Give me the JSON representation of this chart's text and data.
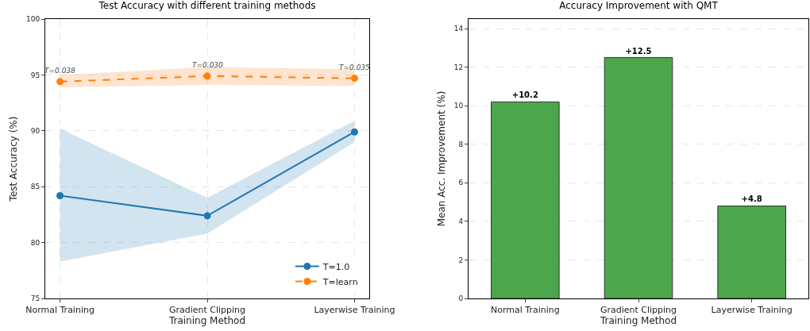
{
  "chart_data": [
    {
      "type": "line",
      "title": "Test Accuracy with different training methods",
      "xlabel": "Training Method",
      "ylabel": "Test Accuracy (%)",
      "categories": [
        "Normal Training",
        "Gradient Clipping",
        "Layerwise Training"
      ],
      "series": [
        {
          "name": "T=1.0",
          "color": "#1f77b4",
          "values": [
            84.2,
            82.4,
            89.9
          ],
          "lower": [
            78.3,
            80.8,
            89.0
          ],
          "upper": [
            90.2,
            84.0,
            90.9
          ],
          "line_style": "solid"
        },
        {
          "name": "T=learn",
          "color": "#ff7f0e",
          "values": [
            94.4,
            94.9,
            94.7
          ],
          "lower": [
            93.9,
            94.1,
            94.0
          ],
          "upper": [
            95.0,
            95.7,
            95.5
          ],
          "line_style": "dashed"
        }
      ],
      "annotations": [
        {
          "text": "T=0.038",
          "x": "Normal Training",
          "y": 94.4
        },
        {
          "text": "T=0.030",
          "x": "Gradient Clipping",
          "y": 94.9
        },
        {
          "text": "T=0.035",
          "x": "Layerwise Training",
          "y": 94.7
        }
      ],
      "ylim": [
        75,
        100
      ],
      "yticks": [
        75,
        80,
        85,
        90,
        95,
        100
      ],
      "grid": true,
      "legend": "bottom right",
      "marker": "circle"
    },
    {
      "type": "bar",
      "title": "Accuracy Improvement with QMT",
      "xlabel": "Training Method",
      "ylabel": "Mean Acc. Improvement (%)",
      "categories": [
        "Normal Training",
        "Gradient Clipping",
        "Layerwise Training"
      ],
      "values": [
        10.2,
        12.5,
        4.8
      ],
      "value_labels": [
        "+10.2",
        "+12.5",
        "+4.8"
      ],
      "color": "#4ca64c",
      "ylim": [
        0,
        14.5
      ],
      "yticks": [
        0,
        2,
        4,
        6,
        8,
        10,
        12,
        14
      ],
      "grid": "y"
    }
  ]
}
